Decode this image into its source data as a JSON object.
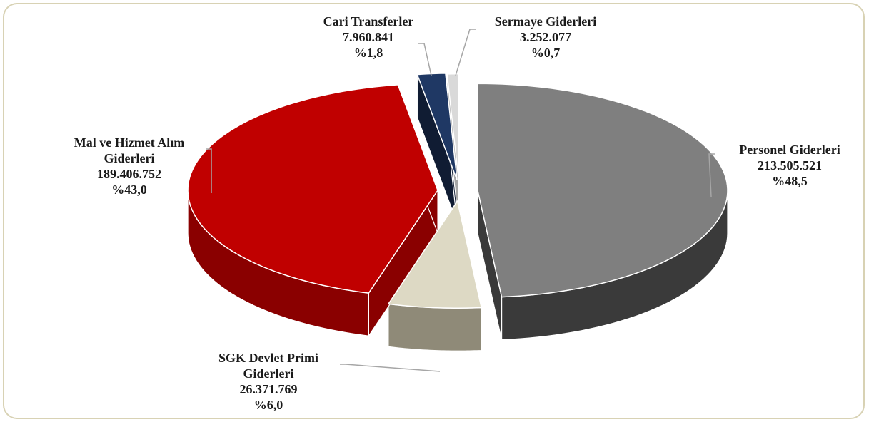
{
  "chart_data": {
    "type": "pie",
    "style": "3d-exploded",
    "slices": [
      {
        "name": "Personel Giderleri",
        "label_lines": [
          "Personel Giderleri"
        ],
        "value": 213505521,
        "value_label": "213.505.521",
        "percent": 48.5,
        "percent_label": "%48,5",
        "color": "#7f7f7f",
        "side_color": "#3a3a3a"
      },
      {
        "name": "SGK Devlet Primi Giderleri",
        "label_lines": [
          "SGK Devlet Primi",
          "Giderleri"
        ],
        "value": 26371769,
        "value_label": "26.371.769",
        "percent": 6.0,
        "percent_label": "%6,0",
        "color": "#ddd9c4",
        "side_color": "#8f8a78"
      },
      {
        "name": "Mal ve Hizmet Alım Giderleri",
        "label_lines": [
          "Mal ve Hizmet Alım",
          "Giderleri"
        ],
        "value": 189406752,
        "value_label": "189.406.752",
        "percent": 43.0,
        "percent_label": "%43,0",
        "color": "#c00000",
        "side_color": "#8a0000"
      },
      {
        "name": "Cari Transferler",
        "label_lines": [
          "Cari Transferler"
        ],
        "value": 7960841,
        "value_label": "7.960.841",
        "percent": 1.8,
        "percent_label": "%1,8",
        "color": "#1f3864",
        "side_color": "#101c33"
      },
      {
        "name": "Sermaye Giderleri",
        "label_lines": [
          "Sermaye Giderleri"
        ],
        "value": 3252077,
        "value_label": "3.252.077",
        "percent": 0.7,
        "percent_label": "%0,7",
        "color": "#d9d9d9",
        "side_color": "#a6a6a6"
      }
    ],
    "legend": "none",
    "data_labels": "outside with leader lines"
  }
}
